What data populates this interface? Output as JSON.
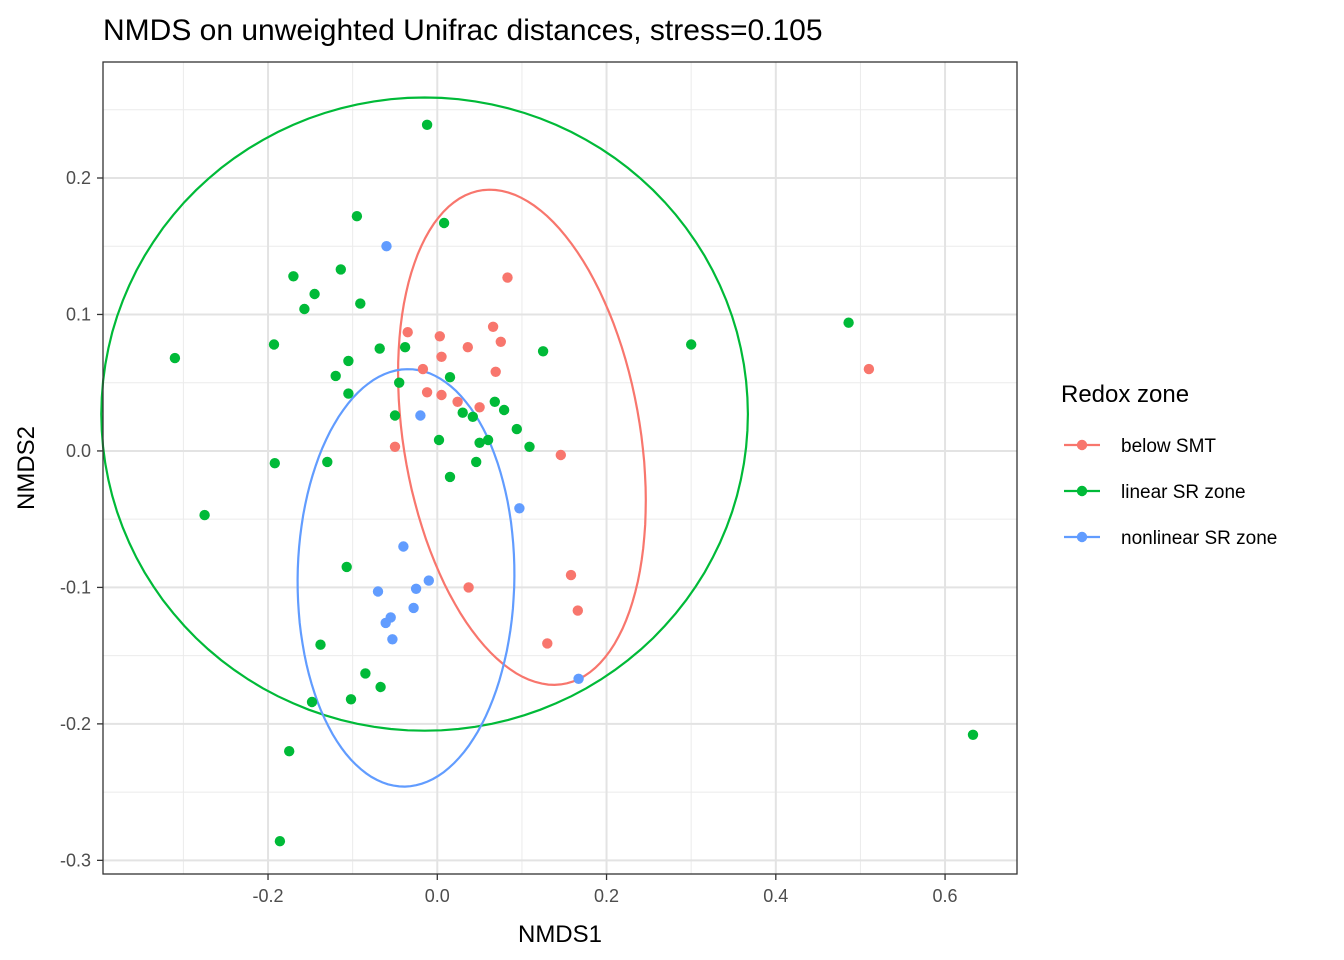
{
  "chart_data": {
    "type": "scatter",
    "title": "NMDS on unweighted Unifrac distances, stress=0.105",
    "xlabel": "NMDS1",
    "ylabel": "NMDS2",
    "xlim": [
      -0.395,
      0.685
    ],
    "ylim": [
      -0.31,
      0.285
    ],
    "x_ticks": [
      {
        "value": -0.2,
        "label": "-0.2"
      },
      {
        "value": 0.0,
        "label": "0.0"
      },
      {
        "value": 0.2,
        "label": "0.2"
      },
      {
        "value": 0.4,
        "label": "0.4"
      },
      {
        "value": 0.6,
        "label": "0.6"
      }
    ],
    "y_ticks": [
      {
        "value": -0.3,
        "label": "-0.3"
      },
      {
        "value": -0.2,
        "label": "-0.2"
      },
      {
        "value": -0.1,
        "label": "-0.1"
      },
      {
        "value": 0.0,
        "label": "0.0"
      },
      {
        "value": 0.1,
        "label": "0.1"
      },
      {
        "value": 0.2,
        "label": "0.2"
      }
    ],
    "grid": true,
    "legend": {
      "title": "Redox zone",
      "placement": "right"
    },
    "series": [
      {
        "name": "below SMT",
        "color": "#F8766D",
        "points": [
          [
            0.083,
            0.127
          ],
          [
            -0.035,
            0.087
          ],
          [
            0.003,
            0.084
          ],
          [
            0.066,
            0.091
          ],
          [
            0.036,
            0.076
          ],
          [
            0.075,
            0.08
          ],
          [
            0.005,
            0.069
          ],
          [
            -0.017,
            0.06
          ],
          [
            0.069,
            0.058
          ],
          [
            -0.012,
            0.043
          ],
          [
            0.005,
            0.041
          ],
          [
            0.024,
            0.036
          ],
          [
            0.05,
            0.032
          ],
          [
            -0.05,
            0.003
          ],
          [
            0.146,
            -0.003
          ],
          [
            0.158,
            -0.091
          ],
          [
            0.037,
            -0.1
          ],
          [
            0.166,
            -0.117
          ],
          [
            0.13,
            -0.141
          ],
          [
            0.51,
            0.06
          ]
        ],
        "ellipse": {
          "cx": 0.1,
          "cy": 0.01,
          "rx": 0.135,
          "ry": 0.19,
          "angle_deg": 25
        }
      },
      {
        "name": "linear SR zone",
        "color": "#00BA38",
        "points": [
          [
            -0.012,
            0.239
          ],
          [
            -0.095,
            0.172
          ],
          [
            0.008,
            0.167
          ],
          [
            -0.17,
            0.128
          ],
          [
            -0.114,
            0.133
          ],
          [
            -0.145,
            0.115
          ],
          [
            -0.157,
            0.104
          ],
          [
            -0.091,
            0.108
          ],
          [
            -0.31,
            0.068
          ],
          [
            -0.193,
            0.078
          ],
          [
            -0.068,
            0.075
          ],
          [
            -0.038,
            0.076
          ],
          [
            -0.105,
            0.066
          ],
          [
            0.125,
            0.073
          ],
          [
            0.3,
            0.078
          ],
          [
            0.486,
            0.094
          ],
          [
            -0.12,
            0.055
          ],
          [
            0.015,
            0.054
          ],
          [
            -0.045,
            0.05
          ],
          [
            -0.105,
            0.042
          ],
          [
            0.068,
            0.036
          ],
          [
            0.079,
            0.03
          ],
          [
            0.03,
            0.028
          ],
          [
            0.042,
            0.025
          ],
          [
            -0.05,
            0.026
          ],
          [
            0.094,
            0.016
          ],
          [
            0.002,
            0.008
          ],
          [
            0.06,
            0.008
          ],
          [
            0.05,
            0.006
          ],
          [
            0.109,
            0.003
          ],
          [
            -0.192,
            -0.009
          ],
          [
            -0.13,
            -0.008
          ],
          [
            0.046,
            -0.008
          ],
          [
            0.015,
            -0.019
          ],
          [
            -0.275,
            -0.047
          ],
          [
            -0.107,
            -0.085
          ],
          [
            -0.138,
            -0.142
          ],
          [
            -0.085,
            -0.163
          ],
          [
            -0.067,
            -0.173
          ],
          [
            -0.148,
            -0.184
          ],
          [
            -0.102,
            -0.182
          ],
          [
            -0.175,
            -0.22
          ],
          [
            -0.186,
            -0.286
          ],
          [
            0.633,
            -0.208
          ]
        ],
        "ellipse": {
          "cx": -0.015,
          "cy": 0.027,
          "rx": 0.382,
          "ry": 0.232,
          "angle_deg": 0
        }
      },
      {
        "name": "nonlinear SR zone",
        "color": "#619CFF",
        "points": [
          [
            -0.06,
            0.15
          ],
          [
            -0.02,
            0.026
          ],
          [
            0.097,
            -0.042
          ],
          [
            -0.04,
            -0.07
          ],
          [
            -0.01,
            -0.095
          ],
          [
            -0.025,
            -0.101
          ],
          [
            -0.07,
            -0.103
          ],
          [
            -0.028,
            -0.115
          ],
          [
            -0.055,
            -0.122
          ],
          [
            -0.061,
            -0.126
          ],
          [
            -0.053,
            -0.138
          ],
          [
            0.167,
            -0.167
          ]
        ],
        "ellipse": {
          "cx": -0.037,
          "cy": -0.093,
          "rx": 0.128,
          "ry": 0.153,
          "angle_deg": -3
        }
      }
    ]
  }
}
